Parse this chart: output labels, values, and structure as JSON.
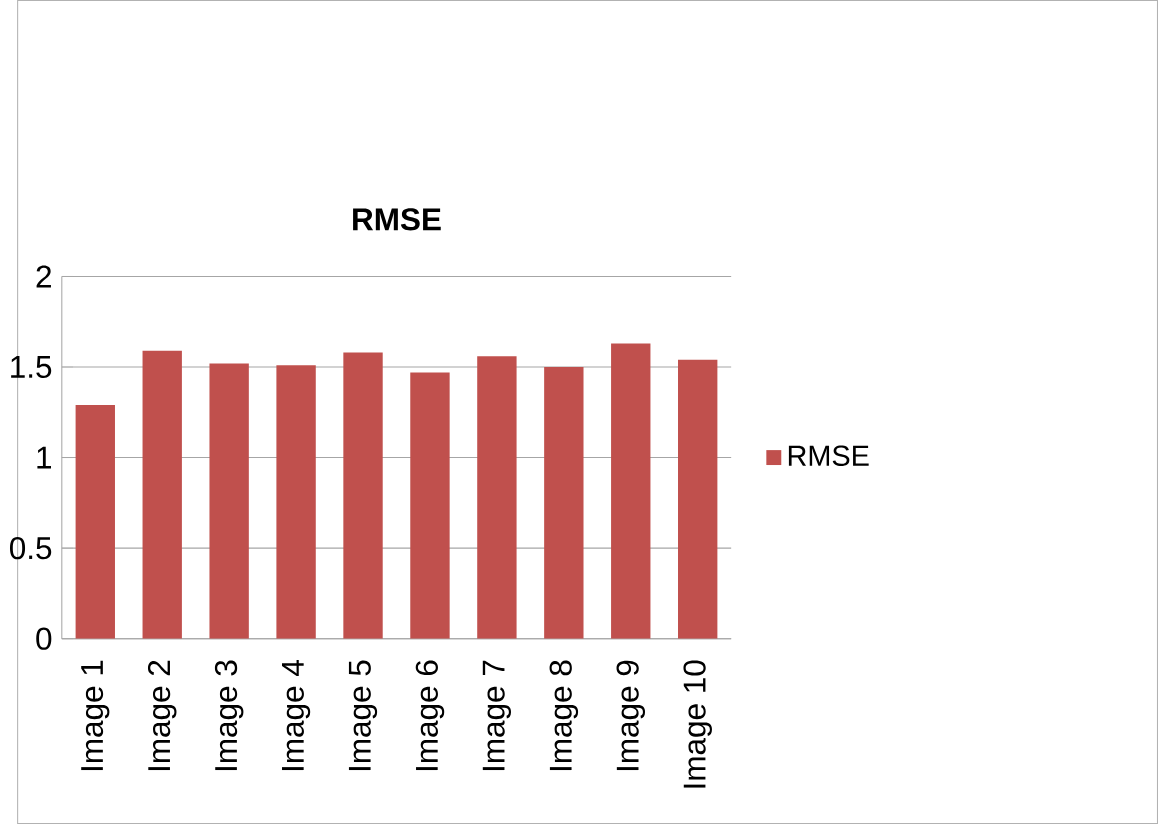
{
  "chart_data": {
    "type": "bar",
    "title": "RMSE",
    "categories": [
      "Image 1",
      "Image 2",
      "Image 3",
      "Image 4",
      "Image 5",
      "Image 6",
      "Image 7",
      "Image 8",
      "Image 9",
      "Image 10"
    ],
    "series": [
      {
        "name": "RMSE",
        "color": "#c0504d",
        "values": [
          1.29,
          1.59,
          1.52,
          1.51,
          1.58,
          1.47,
          1.56,
          1.5,
          1.63,
          1.54
        ]
      }
    ],
    "ylim": [
      0,
      2
    ],
    "yticks": [
      0,
      0.5,
      1,
      1.5,
      2
    ],
    "grid": "y",
    "legend": "right"
  }
}
